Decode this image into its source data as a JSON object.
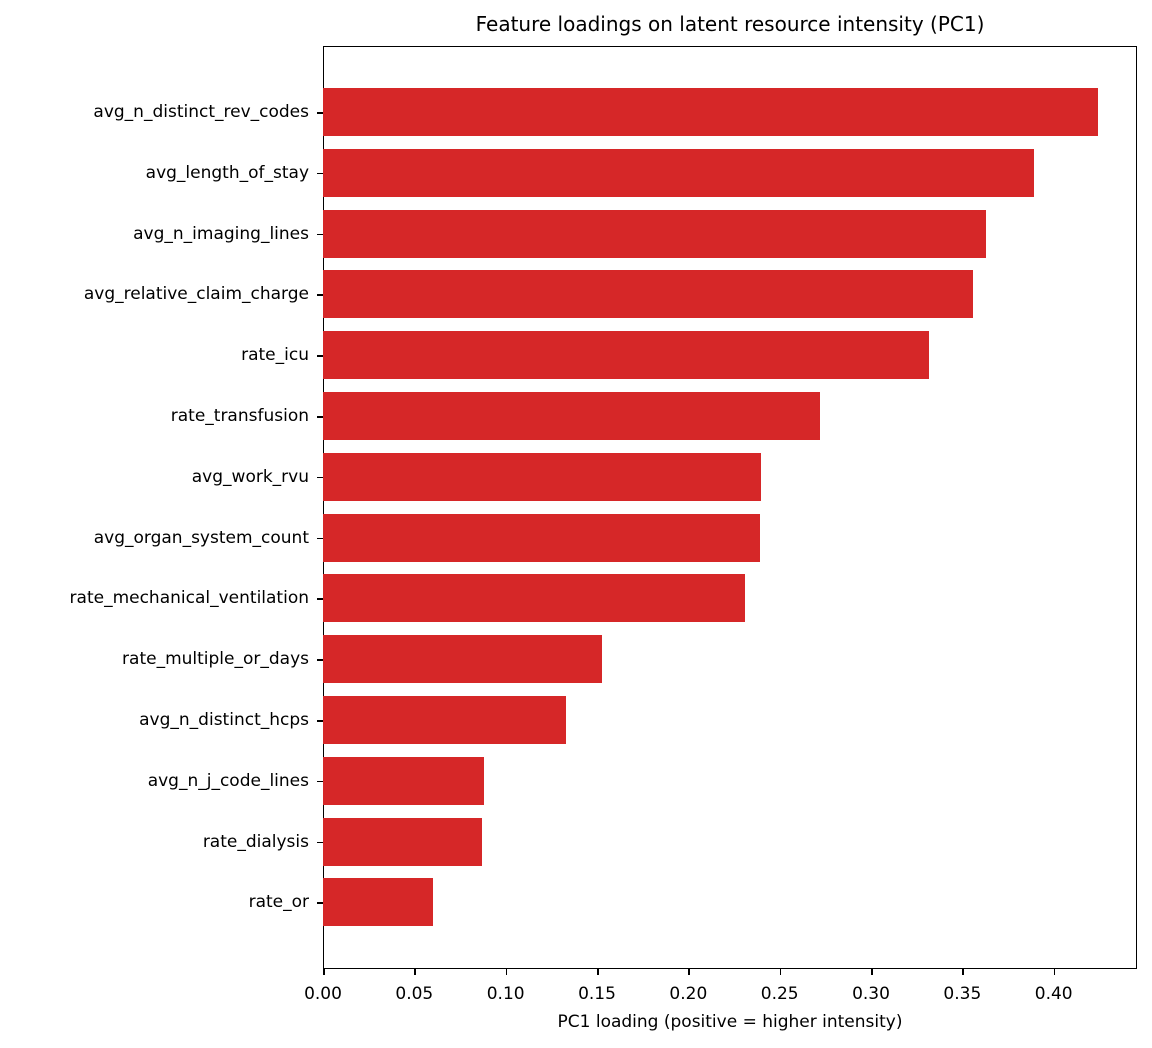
{
  "chart_data": {
    "type": "bar",
    "orientation": "horizontal",
    "title": "Feature loadings on latent resource intensity (PC1)",
    "xlabel": "PC1 loading (positive = higher intensity)",
    "ylabel": "",
    "xlim": [
      0.0,
      0.4456
    ],
    "xticks": [
      "0.00",
      "0.05",
      "0.10",
      "0.15",
      "0.20",
      "0.25",
      "0.30",
      "0.35",
      "0.40"
    ],
    "grid": false,
    "legend": null,
    "bar_color": "#d62728",
    "categories": [
      "avg_n_distinct_rev_codes",
      "avg_length_of_stay",
      "avg_n_imaging_lines",
      "avg_relative_claim_charge",
      "rate_icu",
      "rate_transfusion",
      "avg_work_rvu",
      "avg_organ_system_count",
      "rate_mechanical_ventilation",
      "rate_multiple_or_days",
      "avg_n_distinct_hcps",
      "avg_n_j_code_lines",
      "rate_dialysis",
      "rate_or"
    ],
    "values": [
      0.424,
      0.389,
      0.363,
      0.356,
      0.332,
      0.272,
      0.24,
      0.239,
      0.231,
      0.153,
      0.133,
      0.088,
      0.087,
      0.06
    ]
  }
}
